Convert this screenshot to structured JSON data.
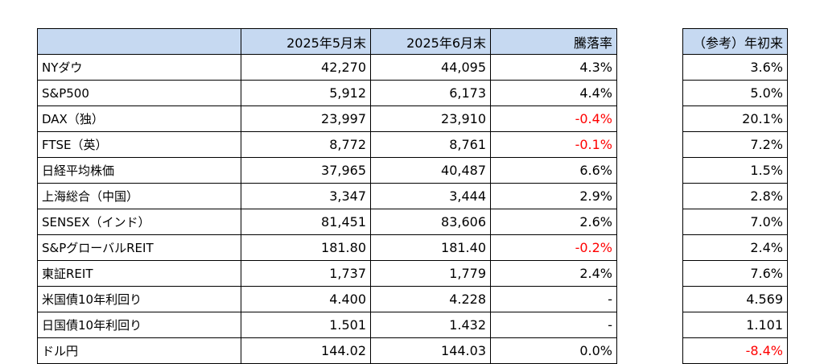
{
  "headers": {
    "label": "",
    "may": "2025年5月末",
    "jun": "2025年6月末",
    "change": "騰落率",
    "ytd": "（参考）年初来"
  },
  "colors": {
    "header_bg": "#c6d9f1",
    "negative": "#ff0000"
  },
  "rows": [
    {
      "label": "NYダウ",
      "may": "42,270",
      "jun": "44,095",
      "change": "4.3%",
      "ytd": "3.6%"
    },
    {
      "label": "S&P500",
      "may": "5,912",
      "jun": "6,173",
      "change": "4.4%",
      "ytd": "5.0%"
    },
    {
      "label": "DAX（独）",
      "may": "23,997",
      "jun": "23,910",
      "change": "-0.4%",
      "ytd": "20.1%"
    },
    {
      "label": "FTSE（英）",
      "may": "8,772",
      "jun": "8,761",
      "change": "-0.1%",
      "ytd": "7.2%"
    },
    {
      "label": "日経平均株価",
      "may": "37,965",
      "jun": "40,487",
      "change": "6.6%",
      "ytd": "1.5%"
    },
    {
      "label": "上海総合（中国）",
      "may": "3,347",
      "jun": "3,444",
      "change": "2.9%",
      "ytd": "2.8%"
    },
    {
      "label": "SENSEX（インド）",
      "may": "81,451",
      "jun": "83,606",
      "change": "2.6%",
      "ytd": "7.0%"
    },
    {
      "label": "S&PグローバルREIT",
      "may": "181.80",
      "jun": "181.40",
      "change": "-0.2%",
      "ytd": "2.4%"
    },
    {
      "label": "東証REIT",
      "may": "1,737",
      "jun": "1,779",
      "change": "2.4%",
      "ytd": "7.6%"
    },
    {
      "label": "米国債10年利回り",
      "may": "4.400",
      "jun": "4.228",
      "change": "-",
      "ytd": "4.569"
    },
    {
      "label": "日国債10年利回り",
      "may": "1.501",
      "jun": "1.432",
      "change": "-",
      "ytd": "1.101"
    },
    {
      "label": "ドル円",
      "may": "144.02",
      "jun": "144.03",
      "change": "0.0%",
      "ytd": "-8.4%"
    }
  ]
}
